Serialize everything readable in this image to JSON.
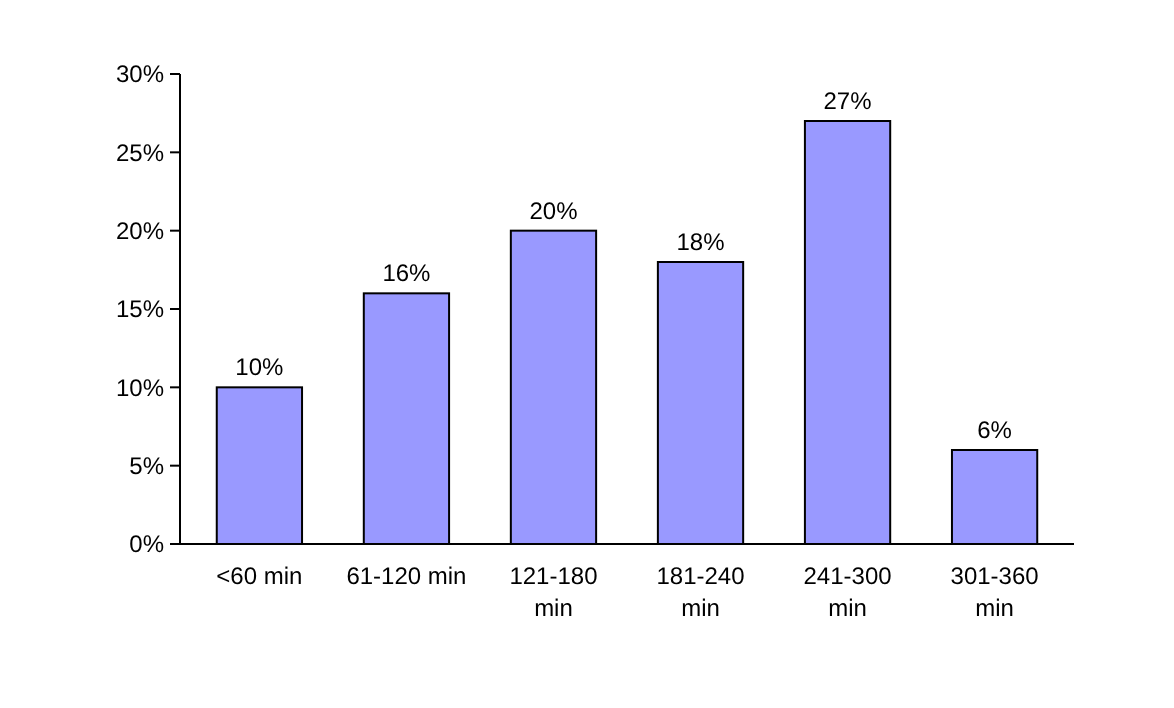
{
  "chart_data": {
    "type": "bar",
    "categories": [
      "<60 min",
      "61-120 min",
      "121-180 min",
      "181-240 min",
      "241-300 min",
      "301-360 min"
    ],
    "values": [
      10,
      16,
      20,
      18,
      27,
      6
    ],
    "color": "#9999ff",
    "value_labels": [
      "10%",
      "16%",
      "20%",
      "18%",
      "27%",
      "6%"
    ],
    "ylim": [
      0,
      30
    ],
    "yticks": [
      {
        "value": 0,
        "label": "0%"
      },
      {
        "value": 5,
        "label": "5%"
      },
      {
        "value": 10,
        "label": "10%"
      },
      {
        "value": 15,
        "label": "15%"
      },
      {
        "value": 20,
        "label": "20%"
      },
      {
        "value": 25,
        "label": "25%"
      },
      {
        "value": 30,
        "label": "30%"
      }
    ],
    "grid": false
  }
}
